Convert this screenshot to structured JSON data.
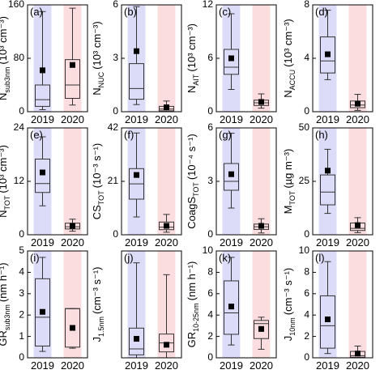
{
  "chart_data": [
    {
      "type": "box",
      "panel_label": "(a)",
      "ylabel": {
        "symbol": "N",
        "subscript": "sub3nm",
        "unit": "(10³ cm⁻³)"
      },
      "ylim": [
        0,
        160
      ],
      "yticks": [
        0,
        80,
        160
      ],
      "categories": [
        "2019",
        "2020"
      ],
      "category_colors": [
        "#2323b4",
        "#d42020"
      ],
      "band_colors": [
        "#dcdcf8",
        "#fbdcdf"
      ],
      "boxes": [
        {
          "whislo": 3,
          "q1": 8,
          "med": 18,
          "q3": 40,
          "whishi": 150,
          "mean": 62
        },
        {
          "whislo": 10,
          "q1": 20,
          "med": 40,
          "q3": 78,
          "whishi": 155,
          "mean": 70
        }
      ]
    },
    {
      "type": "box",
      "panel_label": "(b)",
      "ylabel": {
        "symbol": "N",
        "subscript": "NUC",
        "unit": "(10³ cm⁻³)"
      },
      "ylim": [
        0,
        6
      ],
      "yticks": [
        0,
        3,
        6
      ],
      "categories": [
        "2019",
        "2020"
      ],
      "category_colors": [
        "#2323b4",
        "#d42020"
      ],
      "band_colors": [
        "#dcdcf8",
        "#fbdcdf"
      ],
      "boxes": [
        {
          "whislo": 0.4,
          "q1": 0.7,
          "med": 1.3,
          "q3": 2.7,
          "whishi": 5.9,
          "mean": 3.4
        },
        {
          "whislo": 0,
          "q1": 0.05,
          "med": 0.15,
          "q3": 0.3,
          "whishi": 0.6,
          "mean": 0.25
        }
      ]
    },
    {
      "type": "box",
      "panel_label": "(c)",
      "ylabel": {
        "symbol": "N",
        "subscript": "AIT",
        "unit": "(10³ cm⁻³)"
      },
      "ylim": [
        0,
        12
      ],
      "yticks": [
        0,
        6,
        12
      ],
      "categories": [
        "2019",
        "2020"
      ],
      "category_colors": [
        "#2323b4",
        "#d42020"
      ],
      "band_colors": [
        "#dcdcf8",
        "#fbdcdf"
      ],
      "boxes": [
        {
          "whislo": 2.5,
          "q1": 4.2,
          "med": 5.0,
          "q3": 7.0,
          "whishi": 11.0,
          "mean": 6.0
        },
        {
          "whislo": 0.4,
          "q1": 0.7,
          "med": 1.0,
          "q3": 1.3,
          "whishi": 2.0,
          "mean": 1.1
        }
      ]
    },
    {
      "type": "box",
      "panel_label": "(d)",
      "ylabel": {
        "symbol": "N",
        "subscript": "ACCU",
        "unit": "(10³ cm⁻³)"
      },
      "ylim": [
        0,
        8
      ],
      "yticks": [
        0,
        4,
        8
      ],
      "categories": [
        "2019",
        "2020"
      ],
      "category_colors": [
        "#2323b4",
        "#d42020"
      ],
      "band_colors": [
        "#dcdcf8",
        "#fbdcdf"
      ],
      "boxes": [
        {
          "whislo": 2.4,
          "q1": 2.9,
          "med": 3.8,
          "q3": 5.6,
          "whishi": 7.6,
          "mean": 4.3
        },
        {
          "whislo": 0.1,
          "q1": 0.3,
          "med": 0.5,
          "q3": 0.8,
          "whishi": 1.3,
          "mean": 0.6
        }
      ]
    },
    {
      "type": "box",
      "panel_label": "(e)",
      "ylabel": {
        "symbol": "N",
        "subscript": "TOT",
        "unit": "(10³ cm⁻³)"
      },
      "ylim": [
        0,
        24
      ],
      "yticks": [
        0,
        12,
        24
      ],
      "categories": [
        "2019",
        "2020"
      ],
      "category_colors": [
        "#2323b4",
        "#d42020"
      ],
      "band_colors": [
        "#dcdcf8",
        "#fbdcdf"
      ],
      "boxes": [
        {
          "whislo": 6.5,
          "q1": 9.5,
          "med": 11.5,
          "q3": 17,
          "whishi": 22,
          "mean": 14
        },
        {
          "whislo": 0.8,
          "q1": 1.3,
          "med": 1.8,
          "q3": 2.6,
          "whishi": 3.5,
          "mean": 2.0
        }
      ]
    },
    {
      "type": "box",
      "panel_label": "(f)",
      "ylabel": {
        "symbol": "CS",
        "subscript": "TOT",
        "unit": "(10⁻³ s⁻¹)"
      },
      "ylim": [
        0,
        42
      ],
      "yticks": [
        0,
        21,
        42
      ],
      "categories": [
        "2019",
        "2020"
      ],
      "category_colors": [
        "#2323b4",
        "#d42020"
      ],
      "band_colors": [
        "#dcdcf8",
        "#fbdcdf"
      ],
      "boxes": [
        {
          "whislo": 7,
          "q1": 14,
          "med": 20,
          "q3": 26,
          "whishi": 40,
          "mean": 23.5
        },
        {
          "whislo": 1,
          "q1": 2,
          "med": 3,
          "q3": 5,
          "whishi": 8,
          "mean": 3.5
        }
      ]
    },
    {
      "type": "box",
      "panel_label": "(g)",
      "ylabel": {
        "symbol": "CoagS",
        "subscript": "TOT",
        "unit": "(10⁻⁴ s⁻¹)"
      },
      "ylim": [
        0,
        6
      ],
      "yticks": [
        0,
        3,
        6
      ],
      "categories": [
        "2019",
        "2020"
      ],
      "category_colors": [
        "#2323b4",
        "#d42020"
      ],
      "band_colors": [
        "#dcdcf8",
        "#fbdcdf"
      ],
      "boxes": [
        {
          "whislo": 1.5,
          "q1": 2.5,
          "med": 3.0,
          "q3": 4.0,
          "whishi": 5.7,
          "mean": 3.4
        },
        {
          "whislo": 0.1,
          "q1": 0.3,
          "med": 0.45,
          "q3": 0.6,
          "whishi": 0.9,
          "mean": 0.5
        }
      ]
    },
    {
      "type": "box",
      "panel_label": "(h)",
      "ylabel": {
        "symbol": "M",
        "subscript": "TOT",
        "unit": "(µg m⁻³)"
      },
      "ylim": [
        0,
        50
      ],
      "yticks": [
        0,
        25,
        50
      ],
      "categories": [
        "2019",
        "2020"
      ],
      "category_colors": [
        "#2323b4",
        "#d42020"
      ],
      "band_colors": [
        "#dcdcf8",
        "#fbdcdf"
      ],
      "boxes": [
        {
          "whislo": 10,
          "q1": 14,
          "med": 20,
          "q3": 28,
          "whishi": 40,
          "mean": 30
        },
        {
          "whislo": 1,
          "q1": 2,
          "med": 3,
          "q3": 5.5,
          "whishi": 8,
          "mean": 4.5
        }
      ]
    },
    {
      "type": "box",
      "panel_label": "(i)",
      "ylabel": {
        "symbol": "GR",
        "subscript": "sub3nm",
        "unit": "(nm h⁻¹)"
      },
      "ylim": [
        0,
        5
      ],
      "yticks": [
        0,
        1,
        2,
        3,
        4,
        5
      ],
      "categories": [
        "2019",
        "2020"
      ],
      "category_colors": [
        "#2323b4",
        "#d42020"
      ],
      "band_colors": [
        "#dcdcf8",
        "#fbdcdf"
      ],
      "boxes": [
        {
          "whislo": 0.3,
          "q1": 0.55,
          "med": 1.9,
          "q3": 3.7,
          "whishi": 4.7,
          "mean": 2.15
        },
        {
          "whislo": 0.45,
          "q1": 0.5,
          "med": 2.3,
          "q3": 2.3,
          "whishi": 2.3,
          "mean": 1.4
        }
      ]
    },
    {
      "type": "box",
      "panel_label": "(j)",
      "ylabel": {
        "symbol": "J",
        "subscript": "1.5nm",
        "unit": "(cm⁻³ s⁻¹)"
      },
      "ylim": [
        0,
        180
      ],
      "yticks": [],
      "categories": [
        "2019",
        "2020"
      ],
      "category_colors": [
        "#2323b4",
        "#d42020"
      ],
      "band_colors": [
        "#dcdcf8",
        "#fbdcdf"
      ],
      "boxes": [
        {
          "whislo": 0,
          "q1": 5,
          "med": 15,
          "q3": 50,
          "whishi": 160,
          "mean": 32
        },
        {
          "whislo": 0,
          "q1": 10,
          "med": 25,
          "q3": 40,
          "whishi": 140,
          "mean": 22
        }
      ]
    },
    {
      "type": "box",
      "panel_label": "(k)",
      "ylabel": {
        "symbol": "GR",
        "subscript": "10-25nm",
        "unit": "(nm h⁻¹)"
      },
      "ylim": [
        0,
        10
      ],
      "yticks": [
        0,
        2,
        4,
        6,
        8,
        10
      ],
      "categories": [
        "2019",
        "2020"
      ],
      "category_colors": [
        "#2323b4",
        "#d42020"
      ],
      "band_colors": [
        "#dcdcf8",
        "#fbdcdf"
      ],
      "boxes": [
        {
          "whislo": 1.2,
          "q1": 2.2,
          "med": 4.2,
          "q3": 7.2,
          "whishi": 9.4,
          "mean": 4.8
        },
        {
          "whislo": 0.8,
          "q1": 1.8,
          "med": 3.2,
          "q3": 3.5,
          "whishi": 3.8,
          "mean": 2.7
        }
      ]
    },
    {
      "type": "box",
      "panel_label": "(l)",
      "ylabel": {
        "symbol": "J",
        "subscript": "10nm",
        "unit": "(cm⁻³ s⁻¹)"
      },
      "ylim": [
        0,
        10
      ],
      "yticks": [
        0,
        2,
        4,
        6,
        8,
        10
      ],
      "categories": [
        "2019",
        "2020"
      ],
      "category_colors": [
        "#2323b4",
        "#d42020"
      ],
      "band_colors": [
        "#dcdcf8",
        "#fbdcdf"
      ],
      "boxes": [
        {
          "whislo": 0.4,
          "q1": 0.9,
          "med": 3.0,
          "q3": 5.8,
          "whishi": 9.0,
          "mean": 3.6
        },
        {
          "whislo": 0,
          "q1": 0.05,
          "med": 0.2,
          "q3": 0.6,
          "whishi": 1.1,
          "mean": 0.4
        }
      ]
    }
  ]
}
